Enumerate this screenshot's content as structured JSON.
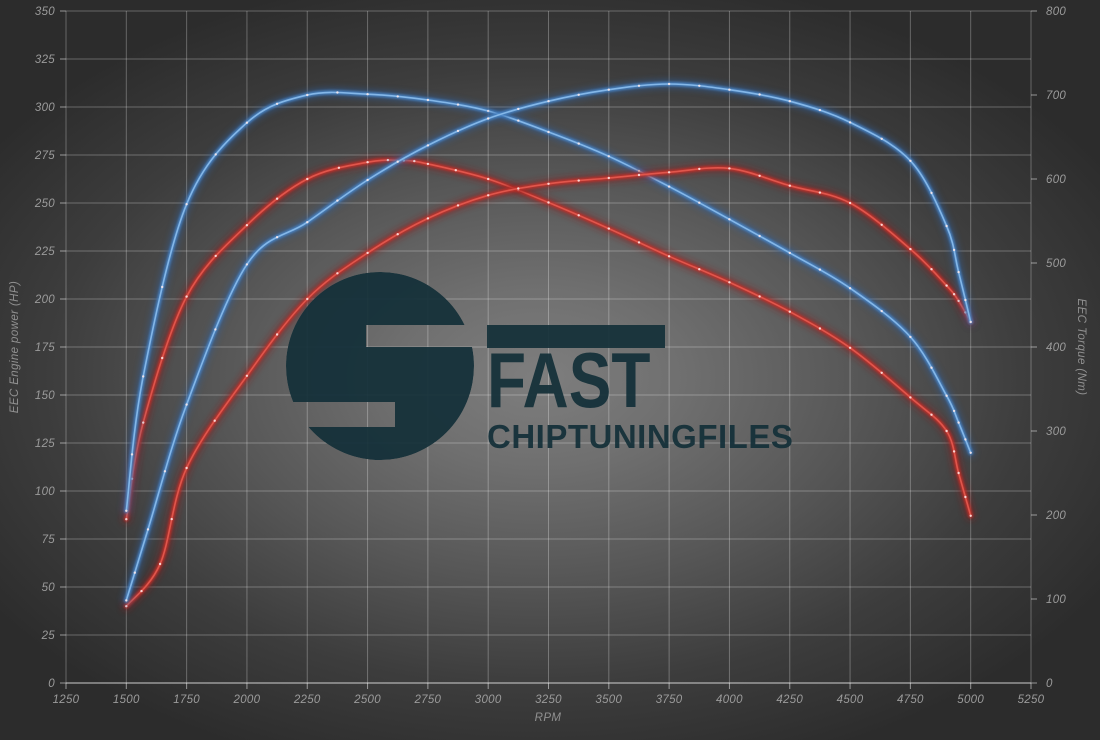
{
  "chart_data": {
    "type": "line",
    "grid": true,
    "legend": "none",
    "x_axis": {
      "label": "RPM",
      "min": 1250,
      "max": 5250,
      "ticks": [
        1250,
        1500,
        1750,
        2000,
        2250,
        2500,
        2750,
        3000,
        3250,
        3500,
        3750,
        4000,
        4250,
        4500,
        4750,
        5000,
        5250
      ]
    },
    "y_left": {
      "label": "EEC Engine power (HP)",
      "min": 0,
      "max": 350,
      "ticks": [
        0,
        25,
        50,
        75,
        100,
        125,
        150,
        175,
        200,
        225,
        250,
        275,
        300,
        325,
        350
      ]
    },
    "y_right": {
      "label": "EEC Torque (Nm)",
      "min": 0,
      "max": 800,
      "ticks": [
        0,
        100,
        200,
        300,
        400,
        500,
        600,
        700,
        800
      ]
    },
    "series": [
      {
        "id": "torque-red-run",
        "name": "red torque curve (Nm, right axis)",
        "axis": "right",
        "color_core": "#e0564c",
        "color_mid": "#c5322c",
        "color_halo": "#8e1f1e",
        "points": [
          [
            1500,
            195
          ],
          [
            1570,
            310
          ],
          [
            1750,
            460
          ],
          [
            2000,
            545
          ],
          [
            2250,
            600
          ],
          [
            2500,
            620
          ],
          [
            2650,
            622
          ],
          [
            2750,
            618
          ],
          [
            3000,
            600
          ],
          [
            3250,
            572
          ],
          [
            3500,
            541
          ],
          [
            3750,
            508
          ],
          [
            4000,
            477
          ],
          [
            4250,
            442
          ],
          [
            4500,
            399
          ],
          [
            4750,
            340
          ],
          [
            4900,
            300
          ],
          [
            4950,
            250
          ],
          [
            5000,
            199
          ]
        ]
      },
      {
        "id": "torque-blue-run",
        "name": "blue torque curve (Nm, right axis)",
        "axis": "right",
        "color_core": "#84b7e8",
        "color_mid": "#4a86c8",
        "color_halo": "#2d5f9e",
        "points": [
          [
            1500,
            205
          ],
          [
            1570,
            365
          ],
          [
            1750,
            570
          ],
          [
            2000,
            667
          ],
          [
            2250,
            700
          ],
          [
            2500,
            701
          ],
          [
            2750,
            694
          ],
          [
            3000,
            681
          ],
          [
            3250,
            656
          ],
          [
            3500,
            627
          ],
          [
            3750,
            591
          ],
          [
            4000,
            552
          ],
          [
            4250,
            512
          ],
          [
            4500,
            470
          ],
          [
            4750,
            412
          ],
          [
            4900,
            342
          ],
          [
            4950,
            310
          ],
          [
            5000,
            274
          ]
        ]
      },
      {
        "id": "power-red-run",
        "name": "red power curve (HP, left axis)",
        "axis": "left",
        "color_core": "#e0564c",
        "color_mid": "#c5322c",
        "color_halo": "#8e1f1e",
        "points": [
          [
            1500,
            40
          ],
          [
            1640,
            62
          ],
          [
            1750,
            112
          ],
          [
            2000,
            160
          ],
          [
            2250,
            200
          ],
          [
            2500,
            224
          ],
          [
            2750,
            242
          ],
          [
            3000,
            254
          ],
          [
            3250,
            260
          ],
          [
            3500,
            263
          ],
          [
            3750,
            266
          ],
          [
            4000,
            268
          ],
          [
            4250,
            259
          ],
          [
            4500,
            250
          ],
          [
            4750,
            226
          ],
          [
            4900,
            207
          ],
          [
            4950,
            199
          ],
          [
            5000,
            188
          ]
        ]
      },
      {
        "id": "power-blue-run",
        "name": "blue power curve (HP, left axis)",
        "axis": "left",
        "color_core": "#84b7e8",
        "color_mid": "#4a86c8",
        "color_halo": "#2d5f9e",
        "points": [
          [
            1500,
            43
          ],
          [
            1590,
            80
          ],
          [
            1750,
            145
          ],
          [
            2000,
            218
          ],
          [
            2250,
            240
          ],
          [
            2500,
            262
          ],
          [
            2750,
            280
          ],
          [
            3000,
            294
          ],
          [
            3250,
            303
          ],
          [
            3500,
            309
          ],
          [
            3750,
            312
          ],
          [
            4000,
            309
          ],
          [
            4250,
            303
          ],
          [
            4500,
            292
          ],
          [
            4750,
            272
          ],
          [
            4900,
            238
          ],
          [
            4950,
            214
          ],
          [
            5000,
            188
          ]
        ]
      }
    ]
  },
  "watermark": {
    "line1": "FAST",
    "line2": "CHIPTUNINGFILES",
    "color": "#143039"
  },
  "colors": {
    "grid": "rgba(255,255,255,0.28)",
    "axis_line": "rgba(255,255,255,0.5)",
    "tick_text": "#9b9b9b",
    "marker": "rgba(255,235,235,0.85)"
  }
}
